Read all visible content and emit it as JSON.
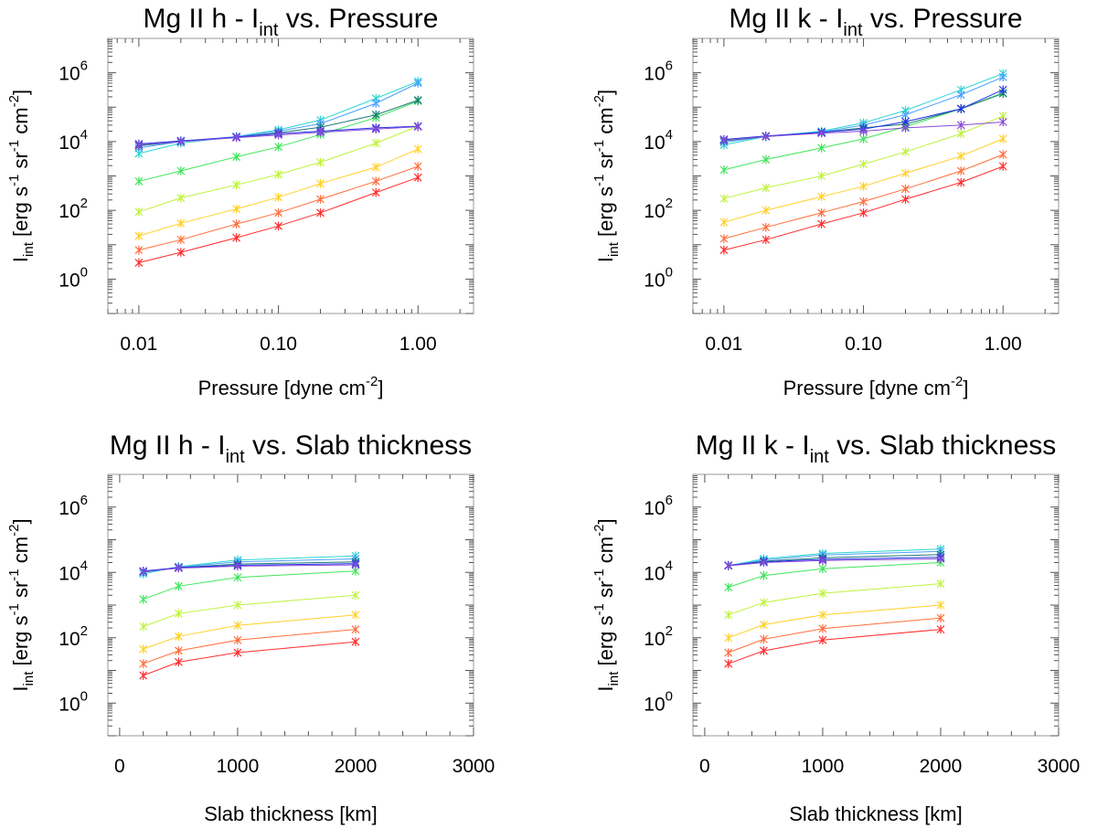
{
  "chart_data": [
    {
      "type": "line",
      "title": "Mg II h - I",
      "title_sub": "int",
      "title_suffix": " vs. Pressure",
      "xlabel": "Pressure [dyne cm",
      "xlabel_sup": "-2",
      "xlabel_close": "]",
      "ylabel_main": "I",
      "ylabel_sub": "int",
      "ylabel_rest": " [erg s",
      "ylabel_sup1": "-1",
      "ylabel_mid": " sr",
      "ylabel_sup2": "-1",
      "ylabel_cm": " cm",
      "ylabel_sup3": "-2",
      "ylabel_close": "]",
      "xscale": "log",
      "yscale": "log",
      "xlim": [
        0.006,
        2.5
      ],
      "ylim": [
        0.1,
        10000000
      ],
      "x_ticks": [
        {
          "v": 0.01,
          "label": "0.01"
        },
        {
          "v": 0.1,
          "label": "0.10"
        },
        {
          "v": 1,
          "label": "1.00"
        }
      ],
      "y_ticks": [
        {
          "v": 1,
          "exp": "0"
        },
        {
          "v": 100,
          "exp": "2"
        },
        {
          "v": 10000,
          "exp": "4"
        },
        {
          "v": 1000000,
          "exp": "6"
        }
      ],
      "x": [
        0.01,
        0.02,
        0.05,
        0.1,
        0.2,
        0.5,
        1.0
      ],
      "series": [
        {
          "color": "#ff2d2d",
          "values": [
            3,
            6,
            16,
            35,
            85,
            330,
            900
          ]
        },
        {
          "color": "#ff6e3c",
          "values": [
            7,
            14,
            40,
            85,
            210,
            700,
            1900
          ]
        },
        {
          "color": "#ffd02a",
          "values": [
            18,
            42,
            110,
            240,
            600,
            1800,
            6000
          ]
        },
        {
          "color": "#bff23d",
          "values": [
            90,
            230,
            550,
            1100,
            2500,
            9000,
            28000
          ]
        },
        {
          "color": "#3fe65a",
          "values": [
            700,
            1400,
            3600,
            7000,
            16000,
            50000,
            150000
          ]
        },
        {
          "color": "#2bd6d0",
          "values": [
            4500,
            9000,
            14000,
            22000,
            42000,
            180000,
            560000
          ]
        },
        {
          "color": "#4aa0ff",
          "values": [
            6500,
            10000,
            14000,
            20000,
            33000,
            130000,
            500000
          ]
        },
        {
          "color": "#1d7a7a",
          "values": [
            7500,
            10000,
            13500,
            18000,
            26000,
            60000,
            160000
          ]
        },
        {
          "color": "#2433e8",
          "values": [
            8500,
            10500,
            13500,
            17000,
            20000,
            25000,
            28000
          ]
        },
        {
          "color": "#8a4ad8",
          "values": [
            8000,
            10000,
            13000,
            15500,
            18500,
            23000,
            27000
          ]
        }
      ]
    },
    {
      "type": "line",
      "title": "Mg II k - I",
      "title_sub": "int",
      "title_suffix": " vs. Pressure",
      "xlabel": "Pressure [dyne cm",
      "xlabel_sup": "-2",
      "xlabel_close": "]",
      "ylabel_main": "I",
      "ylabel_sub": "int",
      "ylabel_rest": " [erg s",
      "ylabel_sup1": "-1",
      "ylabel_mid": " sr",
      "ylabel_sup2": "-1",
      "ylabel_cm": " cm",
      "ylabel_sup3": "-2",
      "ylabel_close": "]",
      "xscale": "log",
      "yscale": "log",
      "xlim": [
        0.006,
        2.5
      ],
      "ylim": [
        0.1,
        10000000
      ],
      "x_ticks": [
        {
          "v": 0.01,
          "label": "0.01"
        },
        {
          "v": 0.1,
          "label": "0.10"
        },
        {
          "v": 1,
          "label": "1.00"
        }
      ],
      "y_ticks": [
        {
          "v": 1,
          "exp": "0"
        },
        {
          "v": 100,
          "exp": "2"
        },
        {
          "v": 10000,
          "exp": "4"
        },
        {
          "v": 1000000,
          "exp": "6"
        }
      ],
      "x": [
        0.01,
        0.02,
        0.05,
        0.1,
        0.2,
        0.5,
        1.0
      ],
      "series": [
        {
          "color": "#ff2d2d",
          "values": [
            7,
            14,
            40,
            85,
            210,
            650,
            1900
          ]
        },
        {
          "color": "#ff6e3c",
          "values": [
            15,
            32,
            85,
            180,
            420,
            1400,
            4200
          ]
        },
        {
          "color": "#ffd02a",
          "values": [
            45,
            100,
            250,
            500,
            1200,
            3800,
            12000
          ]
        },
        {
          "color": "#bff23d",
          "values": [
            220,
            450,
            1000,
            2200,
            5000,
            17000,
            55000
          ]
        },
        {
          "color": "#3fe65a",
          "values": [
            1500,
            3000,
            6500,
            12000,
            27000,
            90000,
            260000
          ]
        },
        {
          "color": "#2bd6d0",
          "values": [
            8000,
            14000,
            20000,
            35000,
            80000,
            320000,
            950000
          ]
        },
        {
          "color": "#4aa0ff",
          "values": [
            9500,
            14000,
            19000,
            30000,
            60000,
            230000,
            750000
          ]
        },
        {
          "color": "#1d7a7a",
          "values": [
            10500,
            14000,
            18500,
            25000,
            32000,
            90000,
            250000
          ]
        },
        {
          "color": "#2433e8",
          "values": [
            11500,
            14500,
            18500,
            23000,
            38000,
            90000,
            320000
          ]
        },
        {
          "color": "#8a4ad8",
          "values": [
            11000,
            14000,
            17500,
            20000,
            25000,
            30000,
            37000
          ]
        }
      ]
    },
    {
      "type": "line",
      "title": "Mg II h - I",
      "title_sub": "int",
      "title_suffix": " vs. Slab thickness",
      "xlabel": "Slab thickness [km]",
      "xlabel_sup": "",
      "xlabel_close": "",
      "ylabel_main": "I",
      "ylabel_sub": "int",
      "ylabel_rest": " [erg s",
      "ylabel_sup1": "-1",
      "ylabel_mid": " sr",
      "ylabel_sup2": "-1",
      "ylabel_cm": " cm",
      "ylabel_sup3": "-2",
      "ylabel_close": "]",
      "xscale": "linear",
      "yscale": "log",
      "xlim": [
        -100,
        3000
      ],
      "ylim": [
        0.1,
        10000000
      ],
      "x_ticks": [
        {
          "v": 0,
          "label": "0"
        },
        {
          "v": 1000,
          "label": "1000"
        },
        {
          "v": 2000,
          "label": "2000"
        },
        {
          "v": 3000,
          "label": "3000"
        }
      ],
      "y_ticks": [
        {
          "v": 1,
          "exp": "0"
        },
        {
          "v": 100,
          "exp": "2"
        },
        {
          "v": 10000,
          "exp": "4"
        },
        {
          "v": 1000000,
          "exp": "6"
        }
      ],
      "x": [
        200,
        500,
        1000,
        2000
      ],
      "series": [
        {
          "color": "#ff2d2d",
          "values": [
            7,
            18,
            35,
            75
          ]
        },
        {
          "color": "#ff6e3c",
          "values": [
            16,
            40,
            85,
            180
          ]
        },
        {
          "color": "#ffd02a",
          "values": [
            45,
            110,
            240,
            500
          ]
        },
        {
          "color": "#bff23d",
          "values": [
            220,
            550,
            1000,
            2000
          ]
        },
        {
          "color": "#3fe65a",
          "values": [
            1500,
            3800,
            7000,
            11000
          ]
        },
        {
          "color": "#2bd6d0",
          "values": [
            9000,
            15000,
            24000,
            32000
          ]
        },
        {
          "color": "#4aa0ff",
          "values": [
            10000,
            14500,
            21000,
            26000
          ]
        },
        {
          "color": "#1d7a7a",
          "values": [
            10500,
            14000,
            18000,
            21000
          ]
        },
        {
          "color": "#2433e8",
          "values": [
            11000,
            14000,
            16500,
            18500
          ]
        },
        {
          "color": "#8a4ad8",
          "values": [
            10500,
            13500,
            15500,
            17000
          ]
        }
      ]
    },
    {
      "type": "line",
      "title": "Mg II k - I",
      "title_sub": "int",
      "title_suffix": " vs. Slab thickness",
      "xlabel": "Slab thickness [km]",
      "xlabel_sup": "",
      "xlabel_close": "",
      "ylabel_main": "I",
      "ylabel_sub": "int",
      "ylabel_rest": " [erg s",
      "ylabel_sup1": "-1",
      "ylabel_mid": " sr",
      "ylabel_sup2": "-1",
      "ylabel_cm": " cm",
      "ylabel_sup3": "-2",
      "ylabel_close": "]",
      "xscale": "linear",
      "yscale": "log",
      "xlim": [
        -100,
        3000
      ],
      "ylim": [
        0.1,
        10000000
      ],
      "x_ticks": [
        {
          "v": 0,
          "label": "0"
        },
        {
          "v": 1000,
          "label": "1000"
        },
        {
          "v": 2000,
          "label": "2000"
        },
        {
          "v": 3000,
          "label": "3000"
        }
      ],
      "y_ticks": [
        {
          "v": 1,
          "exp": "0"
        },
        {
          "v": 100,
          "exp": "2"
        },
        {
          "v": 10000,
          "exp": "4"
        },
        {
          "v": 1000000,
          "exp": "6"
        }
      ],
      "x": [
        200,
        500,
        1000,
        2000
      ],
      "series": [
        {
          "color": "#ff2d2d",
          "values": [
            16,
            40,
            85,
            180
          ]
        },
        {
          "color": "#ff6e3c",
          "values": [
            35,
            90,
            190,
            400
          ]
        },
        {
          "color": "#ffd02a",
          "values": [
            100,
            250,
            500,
            1000
          ]
        },
        {
          "color": "#bff23d",
          "values": [
            500,
            1200,
            2300,
            4500
          ]
        },
        {
          "color": "#3fe65a",
          "values": [
            3500,
            8000,
            13000,
            20000
          ]
        },
        {
          "color": "#2bd6d0",
          "values": [
            16000,
            26000,
            38000,
            52000
          ]
        },
        {
          "color": "#4aa0ff",
          "values": [
            16000,
            24000,
            34000,
            44000
          ]
        },
        {
          "color": "#1d7a7a",
          "values": [
            16000,
            22000,
            28000,
            35000
          ]
        },
        {
          "color": "#2433e8",
          "values": [
            16500,
            21000,
            25000,
            29000
          ]
        },
        {
          "color": "#8a4ad8",
          "values": [
            16000,
            20000,
            23000,
            26000
          ]
        }
      ]
    }
  ]
}
